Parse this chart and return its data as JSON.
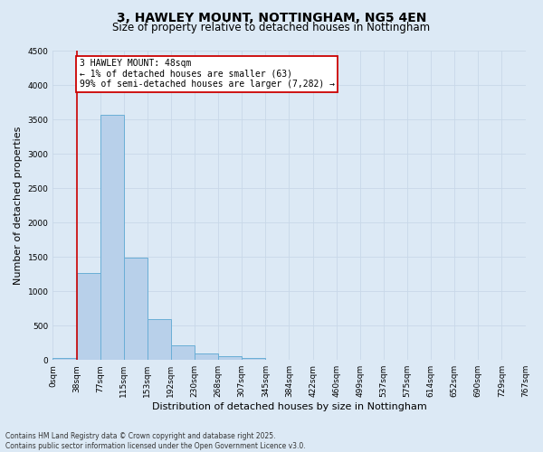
{
  "title_line1": "3, HAWLEY MOUNT, NOTTINGHAM, NG5 4EN",
  "title_line2": "Size of property relative to detached houses in Nottingham",
  "xlabel": "Distribution of detached houses by size in Nottingham",
  "ylabel": "Number of detached properties",
  "bin_labels": [
    "0sqm",
    "38sqm",
    "77sqm",
    "115sqm",
    "153sqm",
    "192sqm",
    "230sqm",
    "268sqm",
    "307sqm",
    "345sqm",
    "384sqm",
    "422sqm",
    "460sqm",
    "499sqm",
    "537sqm",
    "575sqm",
    "614sqm",
    "652sqm",
    "690sqm",
    "729sqm",
    "767sqm"
  ],
  "bar_values": [
    30,
    1270,
    3560,
    1490,
    600,
    210,
    100,
    60,
    30,
    0,
    0,
    0,
    0,
    0,
    0,
    0,
    0,
    0,
    0,
    0
  ],
  "bar_color": "#b8d0ea",
  "bar_edge_color": "#6aaed6",
  "grid_color": "#c8d8e8",
  "background_color": "#dce9f5",
  "property_bin_index": 1,
  "annotation_text": "3 HAWLEY MOUNT: 48sqm\n← 1% of detached houses are smaller (63)\n99% of semi-detached houses are larger (7,282) →",
  "annotation_box_color": "#ffffff",
  "annotation_box_edge": "#cc0000",
  "vline_color": "#cc0000",
  "ylim": [
    0,
    4500
  ],
  "yticks": [
    0,
    500,
    1000,
    1500,
    2000,
    2500,
    3000,
    3500,
    4000,
    4500
  ],
  "footer_line1": "Contains HM Land Registry data © Crown copyright and database right 2025.",
  "footer_line2": "Contains public sector information licensed under the Open Government Licence v3.0.",
  "title_fontsize": 10,
  "subtitle_fontsize": 8.5,
  "tick_fontsize": 6.5,
  "ylabel_fontsize": 8,
  "xlabel_fontsize": 8,
  "annotation_fontsize": 7,
  "footer_fontsize": 5.5
}
